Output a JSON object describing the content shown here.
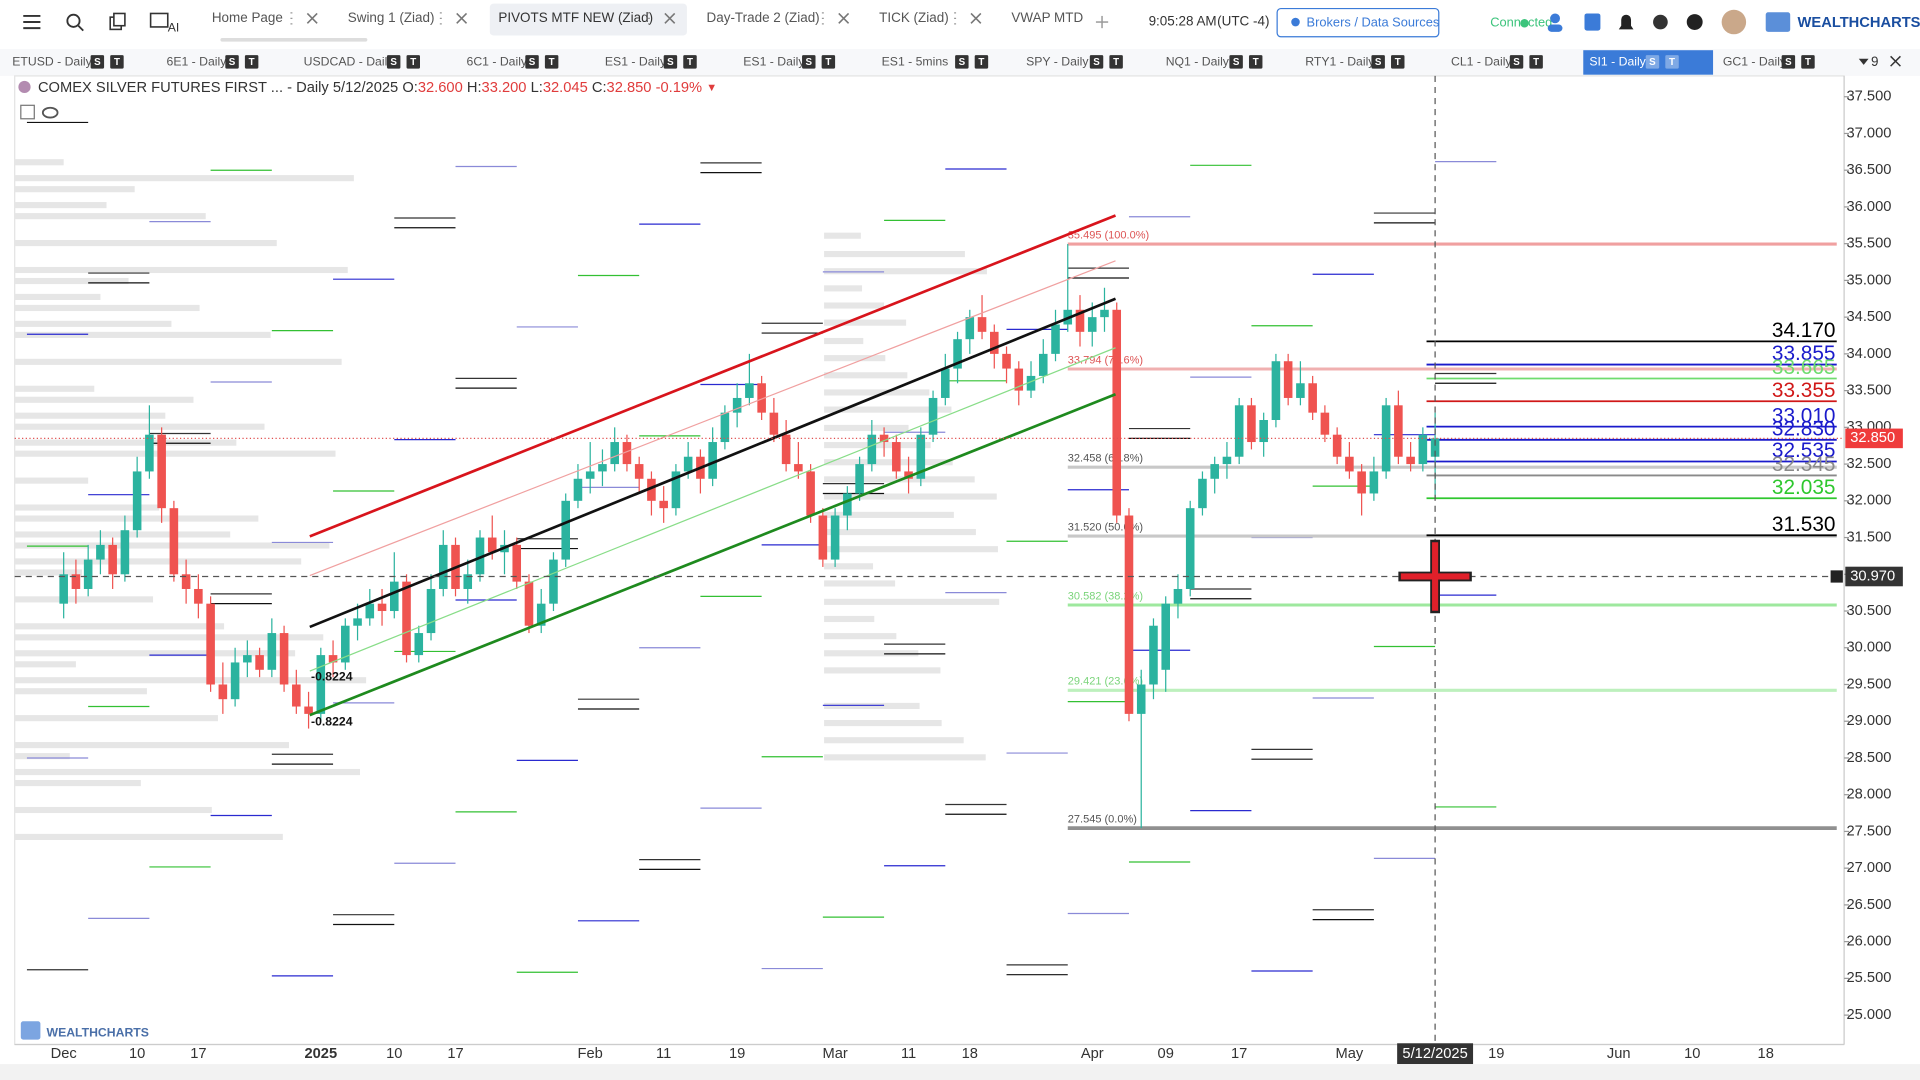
{
  "toolbar": {
    "tabs": [
      "Home Page",
      "Swing 1 (Ziad)",
      "PIVOTS MTF NEW (Ziad)",
      "Day-Trade 2 (Ziad)",
      "TICK (Ziad)",
      "VWAP MTD"
    ],
    "ai_label": "AI",
    "time": "9:05:28 AM",
    "timezone": "(UTC -4)",
    "brokers_button": "Brokers / Data Sources",
    "status": "Connected",
    "logo": "WEALTHCHARTS"
  },
  "symbol_bar": {
    "symbols": [
      "ETUSD - Daily",
      "6E1 - Daily",
      "USDCAD - Daily",
      "6C1 - Daily",
      "ES1 - Daily",
      "ES1 - Daily",
      "ES1 - 5mins",
      "SPY - Daily",
      "NQ1 - Daily",
      "RTY1 - Daily",
      "CL1 - Daily",
      "SI1 - Daily",
      "GC1 - Daily"
    ],
    "badges": [
      "S",
      "T"
    ],
    "more_count": "9"
  },
  "chart_data": {
    "type": "candlestick",
    "title": "COMEX SILVER FUTURES FIRST ...",
    "interval": "- Daily",
    "date": "5/12/2025",
    "header": {
      "open_label": "O:",
      "open": "32.600",
      "high_label": "H:",
      "high": "33.200",
      "low_label": "L:",
      "low": "32.045",
      "close_label": "C:",
      "close": "32.850",
      "change": "-0.19%",
      "arrow": "▼"
    },
    "up_color": "#2bb39f",
    "down_color": "#ef5350",
    "ylim": [
      24.65,
      37.75
    ],
    "yticks": [
      {
        "value": 25,
        "label": "25.000"
      },
      {
        "value": 25.5,
        "label": "25.500"
      },
      {
        "value": 26,
        "label": "26.000"
      },
      {
        "value": 26.5,
        "label": "26.500"
      },
      {
        "value": 27,
        "label": "27.000"
      },
      {
        "value": 27.5,
        "label": "27.500"
      },
      {
        "value": 28,
        "label": "28.000"
      },
      {
        "value": 28.5,
        "label": "28.500"
      },
      {
        "value": 29,
        "label": "29.000"
      },
      {
        "value": 29.5,
        "label": "29.500"
      },
      {
        "value": 30,
        "label": "30.000"
      },
      {
        "value": 30.5,
        "label": "30.500"
      },
      {
        "value": 31,
        "label": "31.000"
      },
      {
        "value": 31.5,
        "label": "31.500"
      },
      {
        "value": 32,
        "label": "32.000"
      },
      {
        "value": 32.5,
        "label": "32.500"
      },
      {
        "value": 33,
        "label": "33.000"
      },
      {
        "value": 33.5,
        "label": "33.500"
      },
      {
        "value": 34,
        "label": "34.000"
      },
      {
        "value": 34.5,
        "label": "34.500"
      },
      {
        "value": 35,
        "label": "35.000"
      },
      {
        "value": 35.5,
        "label": "35.500"
      },
      {
        "value": 36,
        "label": "36.000"
      },
      {
        "value": 36.5,
        "label": "36.500"
      },
      {
        "value": 37,
        "label": "37.000"
      },
      {
        "value": 37.5,
        "label": "37.500"
      }
    ],
    "categories": [
      "Dec",
      null,
      null,
      null,
      null,
      null,
      "10",
      null,
      null,
      null,
      null,
      "17",
      null,
      null,
      null,
      null,
      null,
      null,
      null,
      null,
      null,
      "2025",
      null,
      null,
      null,
      null,
      null,
      "10",
      null,
      null,
      null,
      null,
      "17",
      null,
      null,
      null,
      null,
      null,
      null,
      null,
      null,
      null,
      null,
      "Feb",
      null,
      null,
      null,
      null,
      null,
      "11",
      null,
      null,
      null,
      null,
      null,
      "19",
      null,
      null,
      null,
      null,
      null,
      null,
      null,
      "Mar",
      null,
      null,
      null,
      null,
      null,
      "11",
      null,
      null,
      null,
      null,
      "18",
      null,
      null,
      null,
      null,
      null,
      null,
      null,
      null,
      null,
      "Apr",
      null,
      null,
      null,
      null,
      null,
      "09",
      null,
      null,
      null,
      null,
      null,
      "17",
      null,
      null,
      null,
      null,
      null,
      null,
      null,
      null,
      "May",
      null,
      null,
      null,
      null,
      null,
      null,
      null,
      null,
      null,
      null,
      null,
      "19",
      null,
      null,
      null,
      null,
      null,
      null,
      null,
      null,
      null,
      "Jun",
      null,
      null,
      null,
      null,
      null,
      "10",
      null,
      null,
      null,
      null,
      null,
      "18",
      null,
      null,
      null,
      null,
      null,
      null
    ],
    "ohlc": [
      [
        30.6,
        31.3,
        30.4,
        31.0
      ],
      [
        31.0,
        31.2,
        30.6,
        30.8
      ],
      [
        30.8,
        31.4,
        30.7,
        31.2
      ],
      [
        31.2,
        31.6,
        31.0,
        31.4
      ],
      [
        31.4,
        31.5,
        30.8,
        31.0
      ],
      [
        31.0,
        31.8,
        30.9,
        31.6
      ],
      [
        31.6,
        32.6,
        31.5,
        32.4
      ],
      [
        32.4,
        33.3,
        32.3,
        32.9
      ],
      [
        32.9,
        33.0,
        31.7,
        31.9
      ],
      [
        31.9,
        32.0,
        30.9,
        31.0
      ],
      [
        31.0,
        31.2,
        30.6,
        30.8
      ],
      [
        30.8,
        31.0,
        30.4,
        30.6
      ],
      [
        30.6,
        30.7,
        29.4,
        29.5
      ],
      [
        29.5,
        29.8,
        29.1,
        29.3
      ],
      [
        29.3,
        30.0,
        29.2,
        29.8
      ],
      [
        29.8,
        30.1,
        29.6,
        29.9
      ],
      [
        29.9,
        30.0,
        29.6,
        29.7
      ],
      [
        29.7,
        30.4,
        29.6,
        30.2
      ],
      [
        30.2,
        30.3,
        29.4,
        29.5
      ],
      [
        29.5,
        29.7,
        29.1,
        29.2
      ],
      [
        29.2,
        29.4,
        28.9,
        29.1
      ],
      [
        29.1,
        30.0,
        29.0,
        29.9
      ],
      [
        29.9,
        30.1,
        29.6,
        29.8
      ],
      [
        29.8,
        30.4,
        29.7,
        30.3
      ],
      [
        30.3,
        30.6,
        30.1,
        30.4
      ],
      [
        30.4,
        30.8,
        30.3,
        30.6
      ],
      [
        30.6,
        30.8,
        30.3,
        30.5
      ],
      [
        30.5,
        31.3,
        30.4,
        30.9
      ],
      [
        30.9,
        31.0,
        29.8,
        29.9
      ],
      [
        29.9,
        30.3,
        29.8,
        30.2
      ],
      [
        30.2,
        31.0,
        30.1,
        30.8
      ],
      [
        30.8,
        31.6,
        30.7,
        31.4
      ],
      [
        31.4,
        31.5,
        30.7,
        30.8
      ],
      [
        30.8,
        31.2,
        30.6,
        31.0
      ],
      [
        31.0,
        31.6,
        30.9,
        31.5
      ],
      [
        31.5,
        31.8,
        31.2,
        31.3
      ],
      [
        31.3,
        31.6,
        31.0,
        31.4
      ],
      [
        31.4,
        31.5,
        30.8,
        30.9
      ],
      [
        30.9,
        31.0,
        30.2,
        30.3
      ],
      [
        30.3,
        30.8,
        30.2,
        30.6
      ],
      [
        30.6,
        31.3,
        30.5,
        31.2
      ],
      [
        31.2,
        32.1,
        31.1,
        32.0
      ],
      [
        32.0,
        32.5,
        31.9,
        32.3
      ],
      [
        32.3,
        32.8,
        32.1,
        32.4
      ],
      [
        32.4,
        32.7,
        32.2,
        32.5
      ],
      [
        32.5,
        33.0,
        32.4,
        32.8
      ],
      [
        32.8,
        32.9,
        32.4,
        32.5
      ],
      [
        32.5,
        32.6,
        32.1,
        32.3
      ],
      [
        32.3,
        32.4,
        31.8,
        32.0
      ],
      [
        32.0,
        32.2,
        31.7,
        31.9
      ],
      [
        31.9,
        32.5,
        31.8,
        32.4
      ],
      [
        32.4,
        32.8,
        32.3,
        32.6
      ],
      [
        32.6,
        32.7,
        32.1,
        32.3
      ],
      [
        32.3,
        33.0,
        32.2,
        32.8
      ],
      [
        32.8,
        33.3,
        32.7,
        33.2
      ],
      [
        33.2,
        33.6,
        33.0,
        33.4
      ],
      [
        33.4,
        34.0,
        33.3,
        33.6
      ],
      [
        33.6,
        33.7,
        33.1,
        33.2
      ],
      [
        33.2,
        33.4,
        32.8,
        32.9
      ],
      [
        32.9,
        33.1,
        32.4,
        32.5
      ],
      [
        32.5,
        32.8,
        32.3,
        32.4
      ],
      [
        32.4,
        32.5,
        31.7,
        31.8
      ],
      [
        31.8,
        31.9,
        31.1,
        31.2
      ],
      [
        31.2,
        31.9,
        31.1,
        31.8
      ],
      [
        31.8,
        32.2,
        31.6,
        32.1
      ],
      [
        32.1,
        32.6,
        32.0,
        32.5
      ],
      [
        32.5,
        33.1,
        32.4,
        32.9
      ],
      [
        32.9,
        33.0,
        32.6,
        32.8
      ],
      [
        32.8,
        32.9,
        32.3,
        32.4
      ],
      [
        32.4,
        32.6,
        32.1,
        32.3
      ],
      [
        32.3,
        33.0,
        32.2,
        32.9
      ],
      [
        32.9,
        33.5,
        32.8,
        33.4
      ],
      [
        33.4,
        34.0,
        33.3,
        33.8
      ],
      [
        33.8,
        34.3,
        33.6,
        34.2
      ],
      [
        34.2,
        34.6,
        34.0,
        34.5
      ],
      [
        34.5,
        34.8,
        34.2,
        34.3
      ],
      [
        34.3,
        34.4,
        33.8,
        34.0
      ],
      [
        34.0,
        34.1,
        33.6,
        33.8
      ],
      [
        33.8,
        33.9,
        33.3,
        33.5
      ],
      [
        33.5,
        33.9,
        33.4,
        33.7
      ],
      [
        33.7,
        34.2,
        33.6,
        34.0
      ],
      [
        34.0,
        34.6,
        33.9,
        34.4
      ],
      [
        34.4,
        35.495,
        34.3,
        34.6
      ],
      [
        34.6,
        34.8,
        34.1,
        34.3
      ],
      [
        34.3,
        34.7,
        34.1,
        34.5
      ],
      [
        34.5,
        34.9,
        34.3,
        34.6
      ],
      [
        34.6,
        34.7,
        31.7,
        31.8
      ],
      [
        31.8,
        31.9,
        29.0,
        29.1
      ],
      [
        29.1,
        29.7,
        27.545,
        29.5
      ],
      [
        29.5,
        30.4,
        29.3,
        30.3
      ],
      [
        29.7,
        30.7,
        29.4,
        30.6
      ],
      [
        30.6,
        31.0,
        30.4,
        30.8
      ],
      [
        30.8,
        32.0,
        30.7,
        31.9
      ],
      [
        31.9,
        32.4,
        31.8,
        32.3
      ],
      [
        32.3,
        32.6,
        32.1,
        32.5
      ],
      [
        32.5,
        32.8,
        32.3,
        32.6
      ],
      [
        32.6,
        33.4,
        32.5,
        33.3
      ],
      [
        33.3,
        33.4,
        32.7,
        32.8
      ],
      [
        32.8,
        33.2,
        32.6,
        33.1
      ],
      [
        33.1,
        34.0,
        33.0,
        33.9
      ],
      [
        33.9,
        34.0,
        33.3,
        33.4
      ],
      [
        33.4,
        33.9,
        33.3,
        33.6
      ],
      [
        33.6,
        33.7,
        33.1,
        33.2
      ],
      [
        33.2,
        33.3,
        32.8,
        32.9
      ],
      [
        32.9,
        33.0,
        32.5,
        32.6
      ],
      [
        32.6,
        32.8,
        32.3,
        32.4
      ],
      [
        32.4,
        32.5,
        31.8,
        32.1
      ],
      [
        32.1,
        32.6,
        32.0,
        32.4
      ],
      [
        32.4,
        33.4,
        32.3,
        33.3
      ],
      [
        33.3,
        33.5,
        32.5,
        32.6
      ],
      [
        32.6,
        32.8,
        32.4,
        32.5
      ],
      [
        32.5,
        33.0,
        32.4,
        32.9
      ],
      [
        32.6,
        33.2,
        32.045,
        32.85
      ],
      null,
      null,
      null,
      null,
      null,
      null,
      null,
      null,
      null,
      null,
      null,
      null,
      null,
      null,
      null,
      null,
      null,
      null,
      null,
      null,
      null,
      null,
      null,
      null,
      null,
      null,
      null,
      null,
      null,
      null,
      null,
      null,
      null
    ],
    "levels": [
      {
        "value": 34.17,
        "label": "34.170",
        "color": "#000000"
      },
      {
        "value": 33.855,
        "label": "33.855",
        "color": "#1a1acb"
      },
      {
        "value": 33.665,
        "label": "33.665",
        "color": "#6fdc6f"
      },
      {
        "value": 33.355,
        "label": "33.355",
        "color": "#d01818"
      },
      {
        "value": 33.01,
        "label": "33.010",
        "color": "#1a1acb"
      },
      {
        "value": 32.83,
        "label": "32.830",
        "color": "#1a1acb"
      },
      {
        "value": 32.535,
        "label": "32.535",
        "color": "#1a1acb"
      },
      {
        "value": 32.345,
        "label": "32.345",
        "color": "#8a8a8a"
      },
      {
        "value": 32.035,
        "label": "32.035",
        "color": "#2ec72e"
      },
      {
        "value": 31.53,
        "label": "31.530",
        "color": "#000000"
      }
    ],
    "fib_levels": [
      {
        "value": 35.495,
        "label": "35.495 (100.0%)",
        "color": "#f0a0a0"
      },
      {
        "value": 33.794,
        "label": "33.794 (78.6%)",
        "color": "#f0b0b0"
      },
      {
        "value": 32.458,
        "label": "32.458 (61.8%)",
        "color": "#c8c8c8"
      },
      {
        "value": 31.52,
        "label": "31.520 (50.0%)",
        "color": "#c8c8c8"
      },
      {
        "value": 30.582,
        "label": "30.582 (38.2%)",
        "color": "#9ee89e"
      },
      {
        "value": 29.421,
        "label": "29.421 (23.6%)",
        "color": "#bdf0bd"
      },
      {
        "value": 27.545,
        "label": "27.545 (0.0%)",
        "color": "#909090"
      }
    ],
    "annotations": [
      {
        "value": -0.8224,
        "label": "-0.8224"
      },
      {
        "value": -0.8224,
        "label": "-0.8224"
      }
    ],
    "last_price": {
      "value": 32.85,
      "label": "32.850"
    },
    "crosshair": {
      "date": "5/12/2025",
      "price": {
        "value": 30.97,
        "label": "30.970"
      }
    },
    "watermark": "WEALTHCHARTS"
  }
}
